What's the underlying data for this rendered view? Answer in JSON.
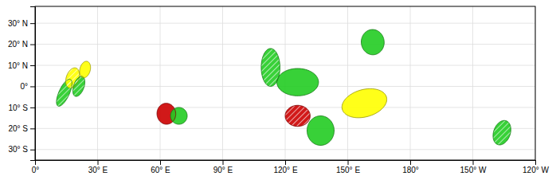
{
  "chart_data": {
    "type": "ellipse",
    "x": [
      14,
      18,
      21,
      24,
      63,
      69,
      113,
      126,
      126,
      137,
      158,
      162,
      224
    ],
    "values": [
      -3,
      4,
      0,
      8,
      -13,
      -14,
      9,
      2,
      -14,
      -21,
      -8,
      21,
      -22
    ],
    "widths": [
      5,
      6,
      5,
      5,
      9,
      8,
      9,
      20,
      12,
      13,
      22,
      11,
      8
    ],
    "heights": [
      14,
      10,
      10,
      8,
      10,
      8,
      18,
      13,
      10,
      14,
      13,
      12,
      12
    ],
    "angles": [
      -25,
      -20,
      -20,
      -15,
      5,
      5,
      0,
      0,
      0,
      0,
      15,
      5,
      -20
    ],
    "colors": [
      "#22cc22",
      "#ffff00",
      "#22cc22",
      "#ffff00",
      "#cc0000",
      "#22cc22",
      "#22cc22",
      "#22cc22",
      "#cc0000",
      "#22cc22",
      "#ffff00",
      "#22cc22",
      "#22cc22"
    ],
    "hatched": [
      true,
      true,
      true,
      false,
      false,
      false,
      true,
      false,
      true,
      false,
      false,
      false,
      true
    ],
    "xlim": [
      0,
      240
    ],
    "ylim": [
      -35,
      38
    ],
    "xticks": [
      {
        "value": 0,
        "label": "0°"
      },
      {
        "value": 30,
        "label": "30° E"
      },
      {
        "value": 60,
        "label": "60° E"
      },
      {
        "value": 90,
        "label": "90° E"
      },
      {
        "value": 120,
        "label": "120° E"
      },
      {
        "value": 150,
        "label": "150° E"
      },
      {
        "value": 180,
        "label": "180°"
      },
      {
        "value": 210,
        "label": "150° W"
      },
      {
        "value": 240,
        "label": "120° W"
      }
    ],
    "yticks": [
      {
        "value": -30,
        "label": "30° S"
      },
      {
        "value": -20,
        "label": "20° S"
      },
      {
        "value": -10,
        "label": "10° S"
      },
      {
        "value": 0,
        "label": "0°"
      },
      {
        "value": 10,
        "label": "10° N"
      },
      {
        "value": 20,
        "label": "20° N"
      },
      {
        "value": 30,
        "label": "30° N"
      }
    ],
    "grid": true
  }
}
